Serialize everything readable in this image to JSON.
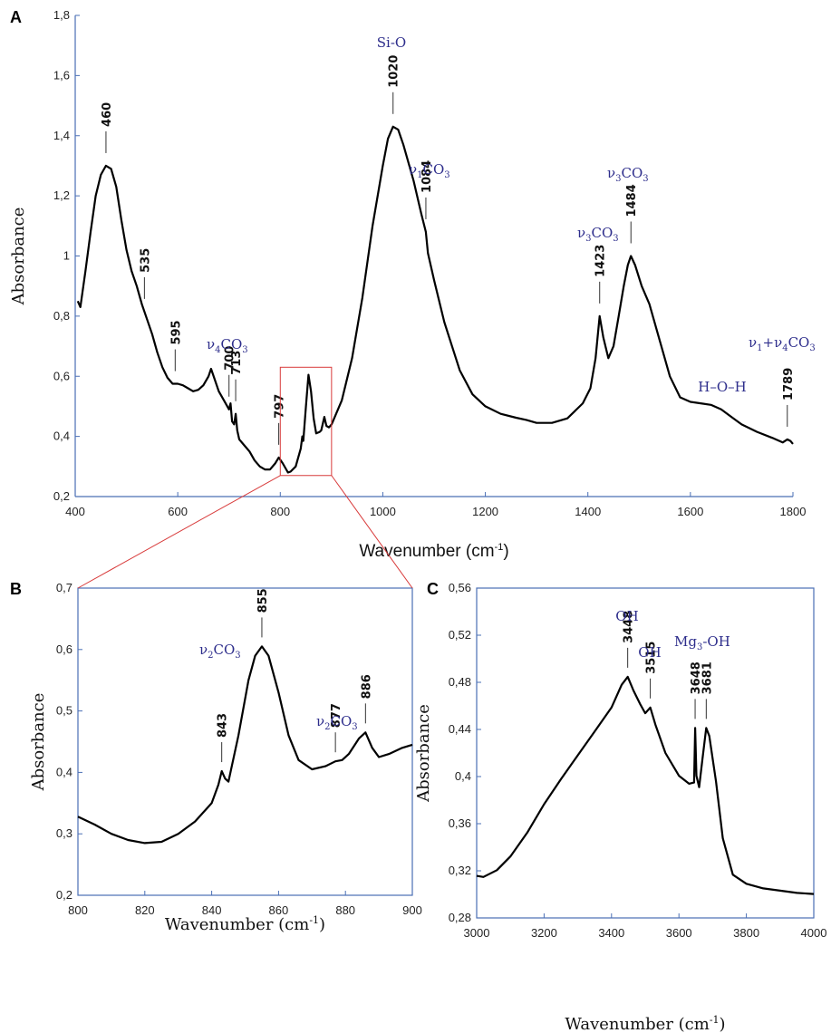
{
  "chart_data": [
    {
      "panel": "A",
      "type": "line",
      "xlabel": "Wavenumber (cm",
      "xlabel_sup": "-1",
      "xlabel_close": ")",
      "ylabel": "Absorbance",
      "xlim": [
        400,
        1800
      ],
      "ylim": [
        0.2,
        1.8
      ],
      "x_ticks": [
        "400",
        "600",
        "800",
        "1000",
        "1200",
        "1400",
        "1600",
        "1800"
      ],
      "y_ticks": [
        "0,2",
        "0,4",
        "0,6",
        "0,8",
        "1",
        "1,2",
        "1,4",
        "1,6",
        "1,8"
      ],
      "series": [
        {
          "points": [
            [
              405,
              0.85
            ],
            [
              410,
              0.83
            ],
            [
              420,
              0.95
            ],
            [
              430,
              1.08
            ],
            [
              440,
              1.2
            ],
            [
              450,
              1.27
            ],
            [
              460,
              1.3
            ],
            [
              470,
              1.29
            ],
            [
              480,
              1.23
            ],
            [
              490,
              1.12
            ],
            [
              500,
              1.02
            ],
            [
              510,
              0.95
            ],
            [
              520,
              0.9
            ],
            [
              530,
              0.84
            ],
            [
              540,
              0.79
            ],
            [
              550,
              0.74
            ],
            [
              560,
              0.68
            ],
            [
              570,
              0.63
            ],
            [
              580,
              0.595
            ],
            [
              590,
              0.575
            ],
            [
              600,
              0.575
            ],
            [
              610,
              0.57
            ],
            [
              620,
              0.56
            ],
            [
              630,
              0.55
            ],
            [
              640,
              0.555
            ],
            [
              650,
              0.57
            ],
            [
              660,
              0.6
            ],
            [
              665,
              0.625
            ],
            [
              672,
              0.59
            ],
            [
              680,
              0.55
            ],
            [
              690,
              0.52
            ],
            [
              700,
              0.49
            ],
            [
              703,
              0.51
            ],
            [
              706,
              0.45
            ],
            [
              710,
              0.44
            ],
            [
              713,
              0.475
            ],
            [
              716,
              0.42
            ],
            [
              720,
              0.39
            ],
            [
              730,
              0.37
            ],
            [
              740,
              0.35
            ],
            [
              750,
              0.32
            ],
            [
              760,
              0.3
            ],
            [
              770,
              0.29
            ],
            [
              780,
              0.29
            ],
            [
              790,
              0.31
            ],
            [
              797,
              0.33
            ],
            [
              805,
              0.31
            ],
            [
              815,
              0.28
            ],
            [
              820,
              0.283
            ],
            [
              830,
              0.3
            ],
            [
              840,
              0.36
            ],
            [
              843,
              0.4
            ],
            [
              845,
              0.385
            ],
            [
              850,
              0.5
            ],
            [
              855,
              0.605
            ],
            [
              860,
              0.55
            ],
            [
              865,
              0.46
            ],
            [
              870,
              0.41
            ],
            [
              877,
              0.415
            ],
            [
              880,
              0.42
            ],
            [
              886,
              0.465
            ],
            [
              890,
              0.435
            ],
            [
              895,
              0.43
            ],
            [
              900,
              0.44
            ],
            [
              920,
              0.52
            ],
            [
              940,
              0.66
            ],
            [
              960,
              0.86
            ],
            [
              980,
              1.1
            ],
            [
              1000,
              1.3
            ],
            [
              1010,
              1.39
            ],
            [
              1020,
              1.43
            ],
            [
              1030,
              1.42
            ],
            [
              1040,
              1.37
            ],
            [
              1060,
              1.25
            ],
            [
              1075,
              1.14
            ],
            [
              1084,
              1.08
            ],
            [
              1088,
              1.01
            ],
            [
              1100,
              0.92
            ],
            [
              1120,
              0.78
            ],
            [
              1150,
              0.62
            ],
            [
              1175,
              0.54
            ],
            [
              1200,
              0.5
            ],
            [
              1230,
              0.475
            ],
            [
              1260,
              0.462
            ],
            [
              1280,
              0.455
            ],
            [
              1300,
              0.445
            ],
            [
              1330,
              0.445
            ],
            [
              1360,
              0.46
            ],
            [
              1390,
              0.51
            ],
            [
              1405,
              0.56
            ],
            [
              1415,
              0.66
            ],
            [
              1423,
              0.8
            ],
            [
              1430,
              0.73
            ],
            [
              1440,
              0.66
            ],
            [
              1450,
              0.7
            ],
            [
              1460,
              0.8
            ],
            [
              1470,
              0.9
            ],
            [
              1478,
              0.97
            ],
            [
              1484,
              1.0
            ],
            [
              1492,
              0.97
            ],
            [
              1505,
              0.9
            ],
            [
              1520,
              0.84
            ],
            [
              1540,
              0.72
            ],
            [
              1560,
              0.6
            ],
            [
              1580,
              0.53
            ],
            [
              1600,
              0.515
            ],
            [
              1620,
              0.51
            ],
            [
              1640,
              0.505
            ],
            [
              1660,
              0.49
            ],
            [
              1680,
              0.465
            ],
            [
              1700,
              0.44
            ],
            [
              1730,
              0.415
            ],
            [
              1760,
              0.395
            ],
            [
              1780,
              0.38
            ],
            [
              1789,
              0.39
            ],
            [
              1795,
              0.385
            ],
            [
              1800,
              0.375
            ]
          ]
        }
      ],
      "peak_labels": [
        {
          "x": 460,
          "label": "460"
        },
        {
          "x": 535,
          "label": "535"
        },
        {
          "x": 595,
          "label": "595"
        },
        {
          "x": 700,
          "label": "700"
        },
        {
          "x": 713,
          "label": "713"
        },
        {
          "x": 797,
          "label": "797"
        },
        {
          "x": 1020,
          "label": "1020"
        },
        {
          "x": 1084,
          "label": "1084"
        },
        {
          "x": 1423,
          "label": "1423"
        },
        {
          "x": 1484,
          "label": "1484"
        },
        {
          "x": 1789,
          "label": "1789"
        }
      ],
      "band_labels": [
        "Si-O",
        "ν4CO3",
        "ν1CO3",
        "ν3CO3",
        "ν3CO3",
        "H–O–H",
        "ν1+ν4CO3"
      ],
      "zoom_box": {
        "x": [
          800,
          900
        ],
        "y": [
          0.27,
          0.63
        ]
      }
    },
    {
      "panel": "B",
      "type": "line",
      "xlabel": "Wavenumber (cm",
      "xlabel_sup": "-1",
      "xlabel_close": ")",
      "ylabel": "Absorbance",
      "xlim": [
        800,
        900
      ],
      "ylim": [
        0.2,
        0.7
      ],
      "x_ticks": [
        "800",
        "820",
        "840",
        "860",
        "880",
        "900"
      ],
      "y_ticks": [
        "0,2",
        "0,3",
        "0,4",
        "0,5",
        "0,6",
        "0,7"
      ],
      "series": [
        {
          "points": [
            [
              800,
              0.328
            ],
            [
              805,
              0.315
            ],
            [
              810,
              0.3
            ],
            [
              815,
              0.29
            ],
            [
              820,
              0.285
            ],
            [
              825,
              0.287
            ],
            [
              830,
              0.3
            ],
            [
              835,
              0.32
            ],
            [
              840,
              0.35
            ],
            [
              842,
              0.38
            ],
            [
              843,
              0.402
            ],
            [
              844,
              0.39
            ],
            [
              845,
              0.385
            ],
            [
              848,
              0.46
            ],
            [
              851,
              0.55
            ],
            [
              853,
              0.59
            ],
            [
              855,
              0.605
            ],
            [
              857,
              0.59
            ],
            [
              860,
              0.53
            ],
            [
              863,
              0.46
            ],
            [
              866,
              0.42
            ],
            [
              870,
              0.405
            ],
            [
              874,
              0.41
            ],
            [
              877,
              0.418
            ],
            [
              879,
              0.42
            ],
            [
              881,
              0.43
            ],
            [
              884,
              0.455
            ],
            [
              886,
              0.465
            ],
            [
              888,
              0.44
            ],
            [
              890,
              0.425
            ],
            [
              893,
              0.43
            ],
            [
              897,
              0.44
            ],
            [
              900,
              0.445
            ]
          ]
        }
      ],
      "peak_labels": [
        {
          "x": 843,
          "label": "843"
        },
        {
          "x": 855,
          "label": "855"
        },
        {
          "x": 877,
          "label": "877"
        },
        {
          "x": 886,
          "label": "886"
        }
      ],
      "band_labels": [
        "ν2CO3",
        "ν2CO3"
      ]
    },
    {
      "panel": "C",
      "type": "line",
      "xlabel": "Wavenumber (cm",
      "xlabel_sup": "-1",
      "xlabel_close": ")",
      "ylabel": "Absorbance",
      "xlim": [
        3000,
        4000
      ],
      "ylim": [
        0.28,
        0.57
      ],
      "x_ticks": [
        "3000",
        "3200",
        "3400",
        "3600",
        "3800",
        "4000"
      ],
      "y_ticks": [
        "0,28",
        "0,32",
        "0,36",
        "0,4",
        "0,44",
        "0,48",
        "0,52",
        "0,56"
      ],
      "series": [
        {
          "points": [
            [
              3000,
              0.317
            ],
            [
              3020,
              0.316
            ],
            [
              3060,
              0.322
            ],
            [
              3100,
              0.334
            ],
            [
              3150,
              0.355
            ],
            [
              3200,
              0.38
            ],
            [
              3250,
              0.402
            ],
            [
              3300,
              0.423
            ],
            [
              3350,
              0.444
            ],
            [
              3400,
              0.465
            ],
            [
              3430,
              0.485
            ],
            [
              3448,
              0.492
            ],
            [
              3465,
              0.48
            ],
            [
              3485,
              0.468
            ],
            [
              3500,
              0.46
            ],
            [
              3515,
              0.465
            ],
            [
              3530,
              0.45
            ],
            [
              3560,
              0.425
            ],
            [
              3600,
              0.405
            ],
            [
              3630,
              0.398
            ],
            [
              3645,
              0.399
            ],
            [
              3648,
              0.447
            ],
            [
              3652,
              0.405
            ],
            [
              3660,
              0.395
            ],
            [
              3670,
              0.42
            ],
            [
              3681,
              0.447
            ],
            [
              3690,
              0.44
            ],
            [
              3710,
              0.4
            ],
            [
              3730,
              0.35
            ],
            [
              3760,
              0.318
            ],
            [
              3800,
              0.31
            ],
            [
              3850,
              0.306
            ],
            [
              3900,
              0.304
            ],
            [
              3950,
              0.302
            ],
            [
              4000,
              0.301
            ]
          ]
        }
      ],
      "peak_labels": [
        {
          "x": 3448,
          "label": "3448"
        },
        {
          "x": 3515,
          "label": "3515"
        },
        {
          "x": 3648,
          "label": "3648"
        },
        {
          "x": 3681,
          "label": "3681"
        }
      ],
      "band_labels": [
        "OH",
        "OH",
        "Mg3-OH"
      ]
    }
  ]
}
